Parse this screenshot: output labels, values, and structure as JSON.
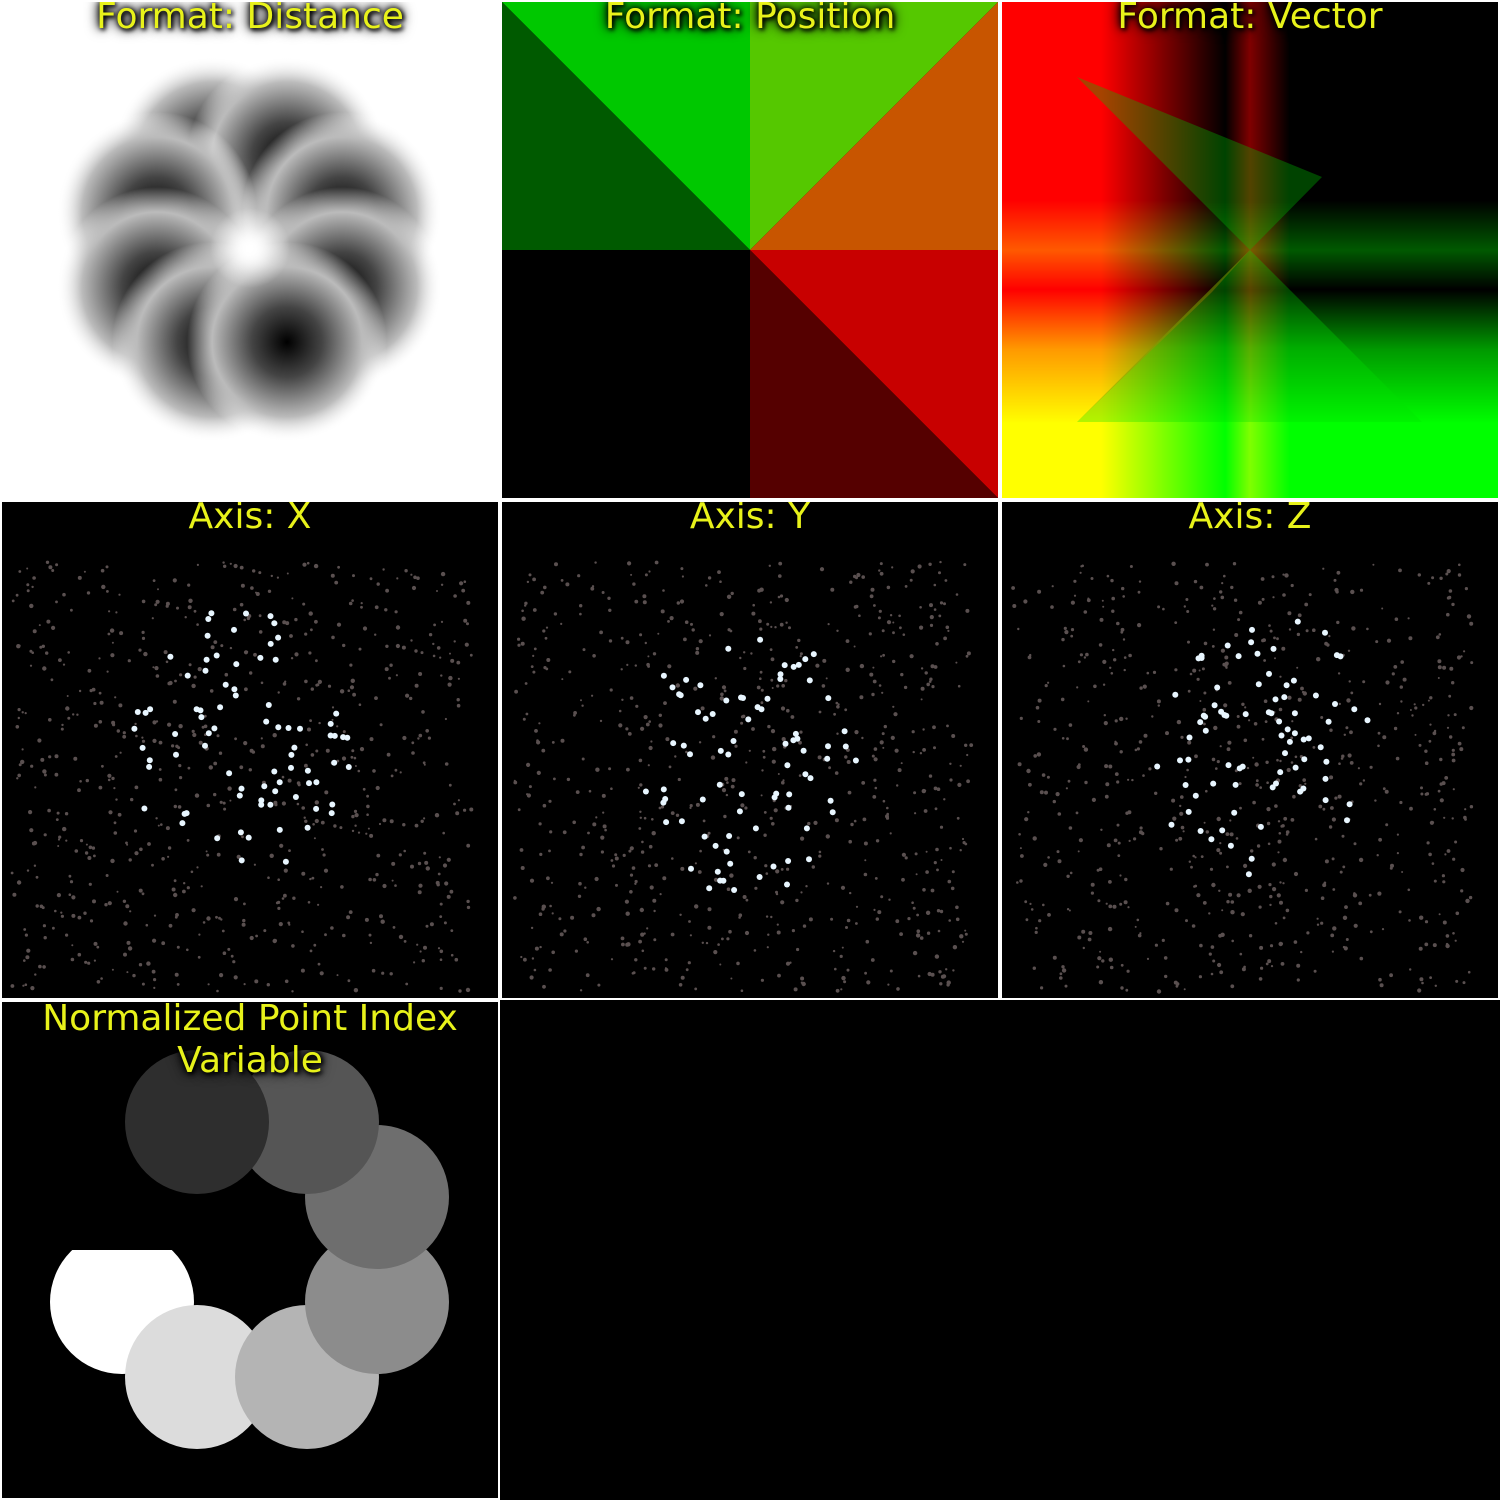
{
  "panels": {
    "distance": {
      "title": "Format: Distance"
    },
    "position": {
      "title": "Format: Position"
    },
    "vector": {
      "title": "Format: Vector"
    },
    "axis_x": {
      "title": "Axis: X"
    },
    "axis_y": {
      "title": "Axis: Y"
    },
    "axis_z": {
      "title": "Axis: Z"
    },
    "point_index": {
      "title_line1": "Normalized Point Index",
      "title_line2": "Variable"
    }
  },
  "colors": {
    "label_text": "#e8f21a",
    "background": "#000000",
    "separator": "#ffffff"
  }
}
